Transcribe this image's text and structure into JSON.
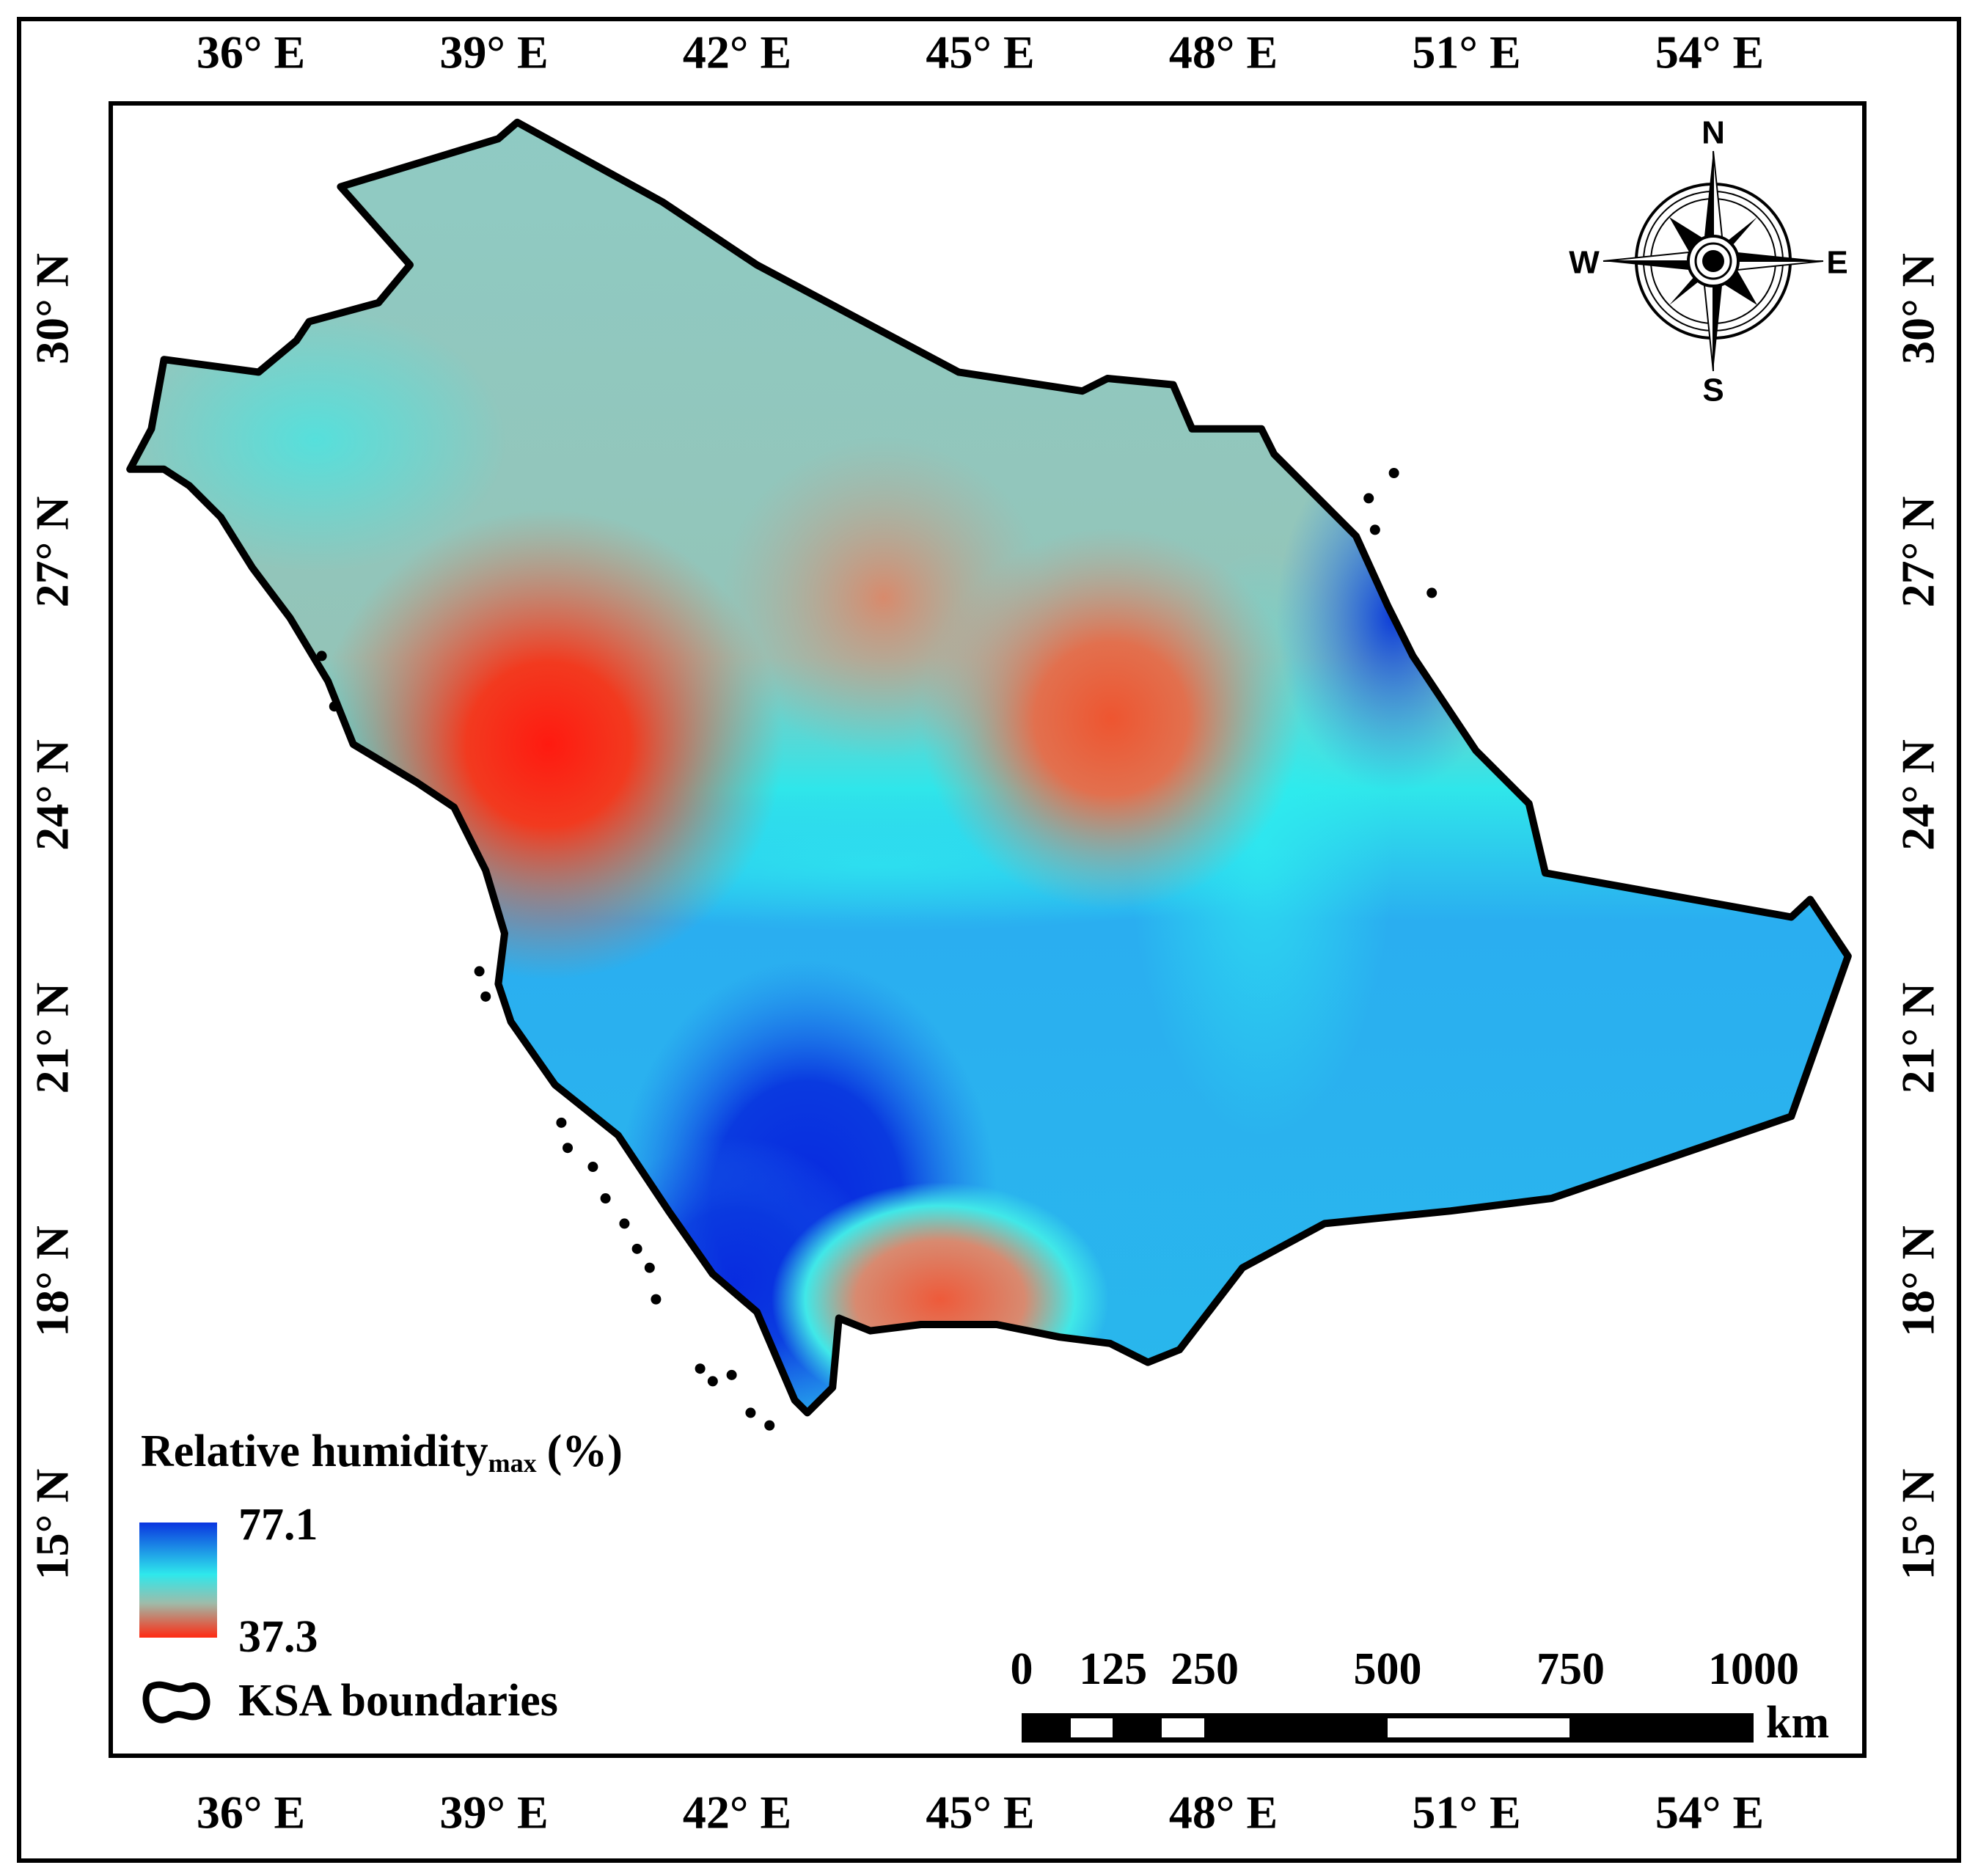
{
  "map": {
    "lon_ticks": [
      {
        "value": 36,
        "label": "36° E"
      },
      {
        "value": 39,
        "label": "39° E"
      },
      {
        "value": 42,
        "label": "42° E"
      },
      {
        "value": 45,
        "label": "45° E"
      },
      {
        "value": 48,
        "label": "48° E"
      },
      {
        "value": 51,
        "label": "51° E"
      },
      {
        "value": 54,
        "label": "54° E"
      }
    ],
    "lat_ticks": [
      {
        "value": 30,
        "label": "30° N"
      },
      {
        "value": 27,
        "label": "27° N"
      },
      {
        "value": 24,
        "label": "24° N"
      },
      {
        "value": 21,
        "label": "21° N"
      },
      {
        "value": 18,
        "label": "18° N"
      },
      {
        "value": 15,
        "label": "15° N"
      }
    ],
    "compass": {
      "north": "N",
      "south": "S",
      "east": "E",
      "west": "W"
    },
    "legend": {
      "title": "Relative humidity",
      "title_subscript": "max",
      "title_unit": "(%)",
      "max_label": "77.1",
      "min_label": "37.3",
      "boundary_label": "KSA boundaries"
    },
    "scale_bar": {
      "ticks": [
        0,
        125,
        250,
        500,
        750,
        1000
      ],
      "unit": "km"
    }
  }
}
